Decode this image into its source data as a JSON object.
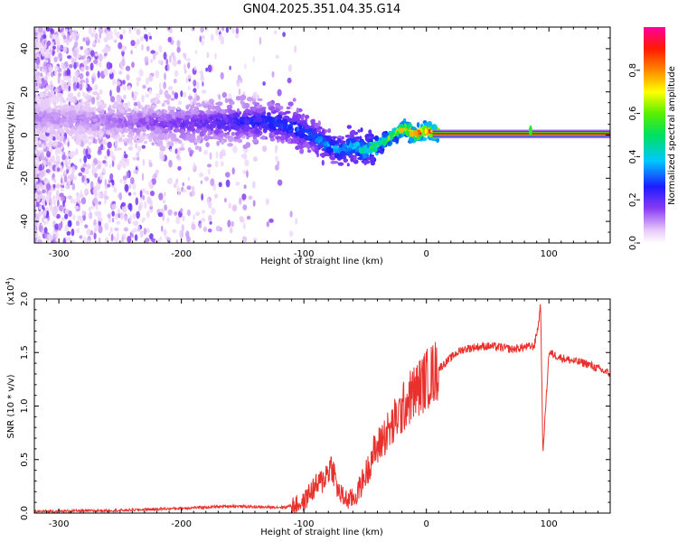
{
  "chart_data": [
    {
      "type": "heatmap",
      "title": "GN04.2025.351.04.35.G14",
      "xlabel": "Height of straight line (km)",
      "ylabel": "Frequency (Hz)",
      "xlim": [
        -320,
        150
      ],
      "ylim": [
        -50,
        50
      ],
      "xticks": [
        -300,
        -200,
        -100,
        0,
        100
      ],
      "yticks": [
        -40,
        -20,
        0,
        20,
        40
      ],
      "colorbar": {
        "label": "Normalized spectral amplitude",
        "range": [
          0,
          1
        ],
        "ticks": [
          0.0,
          0.2,
          0.4,
          0.6,
          0.8
        ],
        "colormap": "rainbow (white-violet-blue-cyan-green-yellow-red-magenta)"
      },
      "ridge": {
        "x": [
          -320,
          -280,
          -240,
          -200,
          -160,
          -130,
          -110,
          -95,
          -80,
          -70,
          -60,
          -50,
          -40,
          -30,
          -22,
          -18,
          -14,
          -10,
          -5,
          0,
          5,
          10,
          20,
          50,
          85,
          100,
          150
        ],
        "freq": [
          8,
          7,
          6,
          5,
          6,
          6,
          4,
          0,
          -5,
          -7,
          -5,
          -7,
          -5,
          -1,
          2,
          3,
          2,
          0,
          1,
          2,
          1,
          1,
          0.5,
          0.5,
          0.5,
          0.5,
          0.5
        ],
        "amplitude": [
          0.12,
          0.12,
          0.15,
          0.2,
          0.25,
          0.3,
          0.33,
          0.36,
          0.38,
          0.4,
          0.45,
          0.5,
          0.6,
          0.7,
          0.8,
          0.85,
          0.9,
          0.93,
          0.95,
          0.95,
          0.95,
          0.95,
          0.95,
          0.95,
          0.95,
          0.95,
          0.95
        ]
      }
    },
    {
      "type": "line",
      "xlabel": "Height of straight line (km)",
      "ylabel": "SNR (10 * v/v)",
      "exponent_label": "(x10",
      "exponent_value": "4",
      "exponent_close": ")",
      "xlim": [
        -320,
        150
      ],
      "ylim": [
        0,
        2.0
      ],
      "xticks": [
        -300,
        -200,
        -100,
        0,
        100
      ],
      "yticks": [
        0.0,
        0.5,
        1.0,
        1.5,
        2.0
      ],
      "ytick_labels": [
        "0.0",
        "0.5",
        "1.0",
        "1.5",
        "2.0"
      ],
      "series": [
        {
          "name": "SNR",
          "color": "#e8312c",
          "x": [
            -320,
            -250,
            -200,
            -160,
            -130,
            -115,
            -100,
            -95,
            -90,
            -85,
            -80,
            -77,
            -75,
            -72,
            -68,
            -64,
            -58,
            -52,
            -48,
            -44,
            -40,
            -36,
            -32,
            -28,
            -24,
            -20,
            -16,
            -12,
            -8,
            -4,
            0,
            5,
            10,
            15,
            20,
            25,
            30,
            40,
            50,
            60,
            70,
            80,
            88,
            92,
            93,
            94,
            95,
            100,
            110,
            120,
            130,
            140,
            150
          ],
          "y": [
            0.01,
            0.02,
            0.04,
            0.06,
            0.05,
            0.05,
            0.1,
            0.2,
            0.25,
            0.3,
            0.4,
            0.45,
            0.35,
            0.2,
            0.15,
            0.12,
            0.15,
            0.3,
            0.4,
            0.55,
            0.6,
            0.7,
            0.75,
            0.8,
            0.9,
            0.95,
            1.05,
            1.1,
            1.15,
            1.2,
            1.25,
            1.3,
            1.35,
            1.4,
            1.45,
            1.5,
            1.53,
            1.55,
            1.56,
            1.55,
            1.53,
            1.55,
            1.56,
            1.8,
            2.0,
            1.4,
            0.55,
            1.5,
            1.45,
            1.42,
            1.4,
            1.35,
            1.3
          ]
        }
      ]
    }
  ],
  "colors": {
    "snr_line": "#e8312c",
    "background": "#ffffff"
  }
}
